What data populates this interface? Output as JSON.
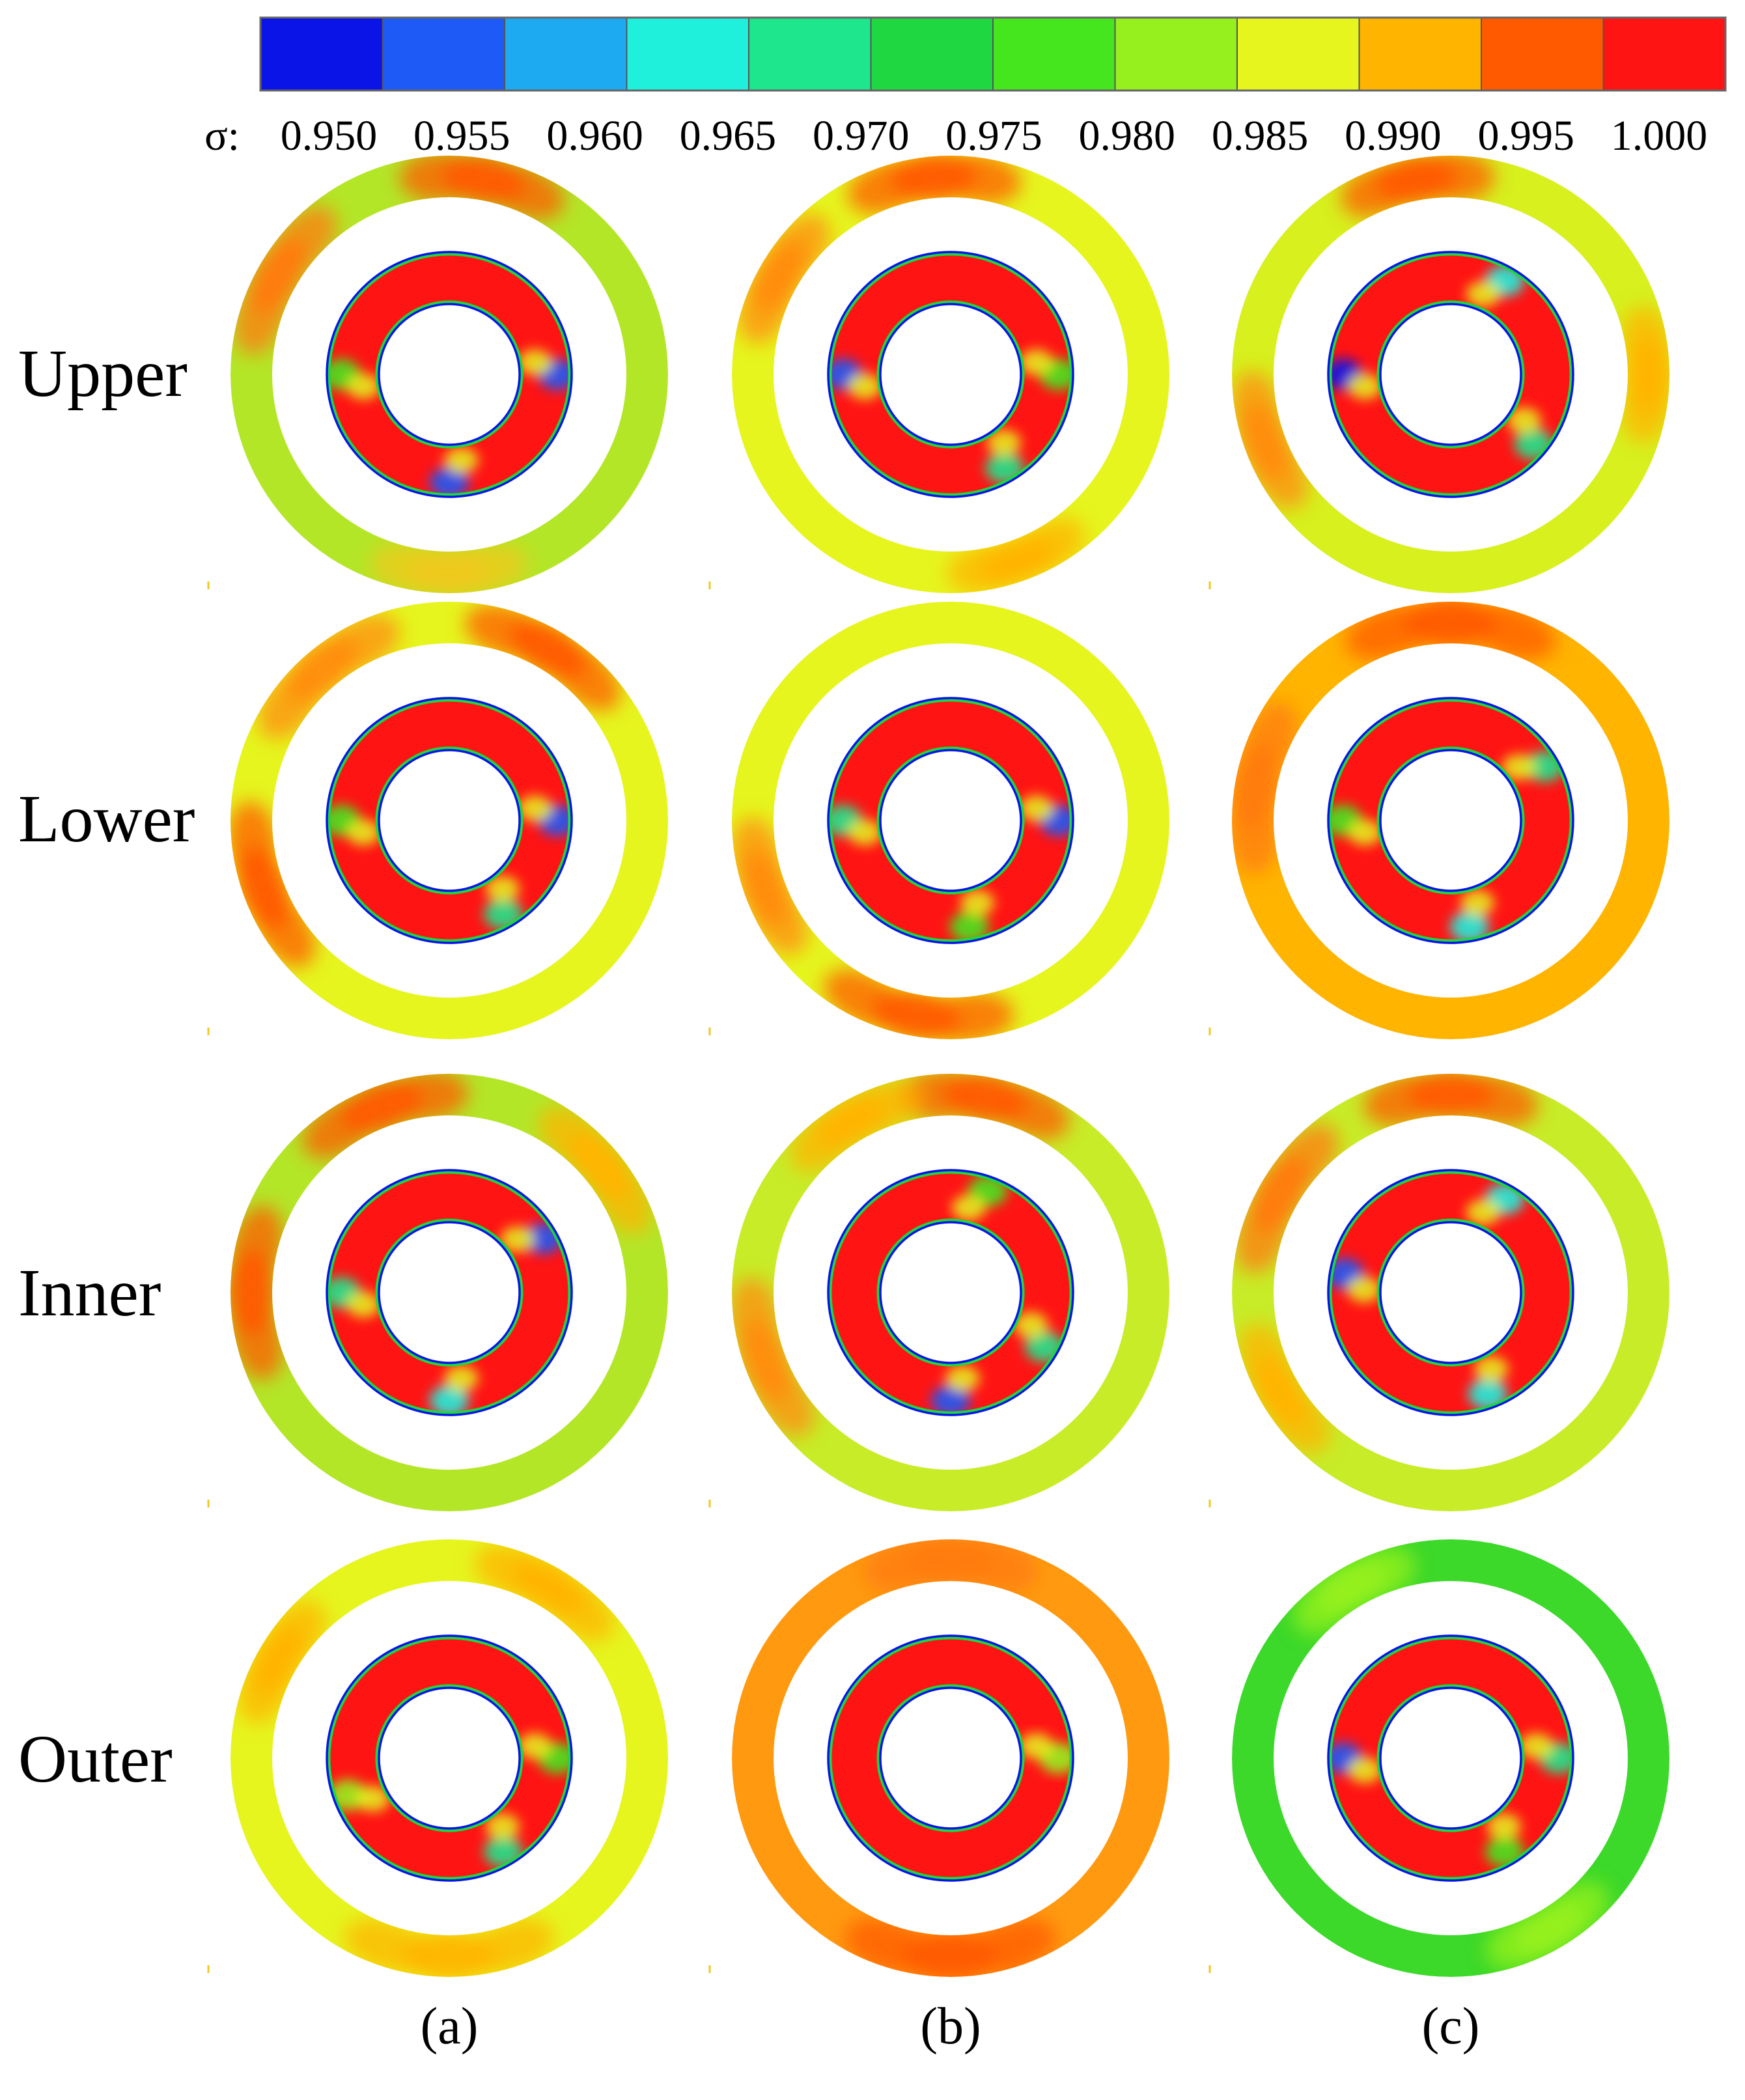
{
  "colorbar": {
    "symbol": "σ:",
    "ticks": [
      "0.950",
      "0.955",
      "0.960",
      "0.965",
      "0.970",
      "0.975",
      "0.980",
      "0.985",
      "0.990",
      "0.995",
      "1.000"
    ],
    "colors": [
      "#0a14e6",
      "#1e5af5",
      "#1eaaf0",
      "#1ef0dc",
      "#1ee68c",
      "#1ed741",
      "#46e61e",
      "#96f01e",
      "#e6f51e",
      "#ffb400",
      "#ff5a00",
      "#ff1414"
    ]
  },
  "rows": [
    {
      "label": "Upper"
    },
    {
      "label": "Lower"
    },
    {
      "label": "Inner"
    },
    {
      "label": "Outer"
    }
  ],
  "columns": [
    {
      "label": "(a)"
    },
    {
      "label": "(b)"
    },
    {
      "label": "(c)"
    }
  ],
  "panels": [
    [
      {
        "outer_base": "#b4e628",
        "hot": [
          [
            80,
            28,
            "#ff5a00"
          ],
          [
            150,
            28,
            "#ff7a10"
          ],
          [
            270,
            25,
            "#f0c81e"
          ]
        ],
        "inner_cool": [
          [
            0,
            "#1e5af5"
          ],
          [
            180,
            "#46e61e"
          ],
          [
            270,
            "#1e5af5"
          ]
        ]
      },
      {
        "outer_base": "#e6f51e",
        "hot": [
          [
            95,
            30,
            "#ff5a00"
          ],
          [
            150,
            22,
            "#ff8c10"
          ],
          [
            290,
            22,
            "#ffb400"
          ]
        ],
        "inner_cool": [
          [
            0,
            "#46e61e"
          ],
          [
            180,
            "#1e5af5"
          ],
          [
            300,
            "#1ee68c"
          ]
        ]
      },
      {
        "outer_base": "#d7f01e",
        "hot": [
          [
            100,
            25,
            "#ff5a00"
          ],
          [
            200,
            22,
            "#ff8c10"
          ],
          [
            0,
            20,
            "#ffb400"
          ]
        ],
        "inner_cool": [
          [
            60,
            "#1ef0dc"
          ],
          [
            180,
            "#0a14e6"
          ],
          [
            320,
            "#1ee68c"
          ]
        ]
      }
    ],
    [
      {
        "outer_base": "#e6f51e",
        "hot": [
          [
            60,
            30,
            "#ff5a00"
          ],
          [
            130,
            30,
            "#ff8c10"
          ],
          [
            200,
            30,
            "#ff5a00"
          ]
        ],
        "inner_cool": [
          [
            0,
            "#1e5af5"
          ],
          [
            180,
            "#46e61e"
          ],
          [
            300,
            "#1ee68c"
          ]
        ]
      },
      {
        "outer_base": "#e6f51e",
        "hot": [
          [
            260,
            35,
            "#ff5a00"
          ],
          [
            200,
            22,
            "#ff8c10"
          ]
        ],
        "inner_cool": [
          [
            0,
            "#1e5af5"
          ],
          [
            180,
            "#1ee68c"
          ],
          [
            280,
            "#46e61e"
          ]
        ]
      },
      {
        "outer_base": "#ffb400",
        "hot": [
          [
            90,
            40,
            "#ff5a00"
          ],
          [
            170,
            30,
            "#ff7a10"
          ]
        ],
        "inner_cool": [
          [
            30,
            "#1ee68c"
          ],
          [
            180,
            "#46e61e"
          ],
          [
            280,
            "#1ef0dc"
          ]
        ]
      }
    ],
    [
      {
        "outer_base": "#b4e628",
        "hot": [
          [
            110,
            30,
            "#ff5a00"
          ],
          [
            180,
            30,
            "#ff5a00"
          ],
          [
            40,
            25,
            "#ffb400"
          ]
        ],
        "inner_cool": [
          [
            30,
            "#1e5af5"
          ],
          [
            180,
            "#1ee68c"
          ],
          [
            270,
            "#1ef0dc"
          ]
        ]
      },
      {
        "outer_base": "#c8ec28",
        "hot": [
          [
            80,
            30,
            "#ff5a00"
          ],
          [
            200,
            28,
            "#ff8c10"
          ],
          [
            120,
            22,
            "#ffb400"
          ]
        ],
        "inner_cool": [
          [
            70,
            "#46e61e"
          ],
          [
            270,
            "#1e5af5"
          ],
          [
            330,
            "#1ee68c"
          ]
        ]
      },
      {
        "outer_base": "#c8ec28",
        "hot": [
          [
            90,
            30,
            "#ff5a00"
          ],
          [
            150,
            28,
            "#ff7a10"
          ],
          [
            210,
            22,
            "#ffb400"
          ]
        ],
        "inner_cool": [
          [
            60,
            "#1ef0dc"
          ],
          [
            170,
            "#1e5af5"
          ],
          [
            290,
            "#1ef0dc"
          ]
        ]
      }
    ],
    [
      {
        "outer_base": "#e6f51e",
        "hot": [
          [
            270,
            40,
            "#ffb400"
          ],
          [
            60,
            25,
            "#ffb400"
          ],
          [
            150,
            20,
            "#ffb400"
          ]
        ],
        "inner_cool": [
          [
            0,
            "#46e61e"
          ],
          [
            300,
            "#1ee68c"
          ],
          [
            200,
            "#96f01e"
          ]
        ]
      },
      {
        "outer_base": "#ff9a10",
        "hot": [
          [
            270,
            40,
            "#ff5a00"
          ],
          [
            90,
            30,
            "#ff7a10"
          ]
        ],
        "inner_cool": [
          [
            0,
            "#96f01e"
          ]
        ]
      },
      {
        "outer_base": "#3cd82a",
        "hot": [
          [
            300,
            20,
            "#96f01e"
          ],
          [
            120,
            20,
            "#96f01e"
          ]
        ],
        "inner_cool": [
          [
            0,
            "#1ee68c"
          ],
          [
            180,
            "#1e5af5"
          ],
          [
            300,
            "#46e61e"
          ]
        ]
      }
    ]
  ]
}
